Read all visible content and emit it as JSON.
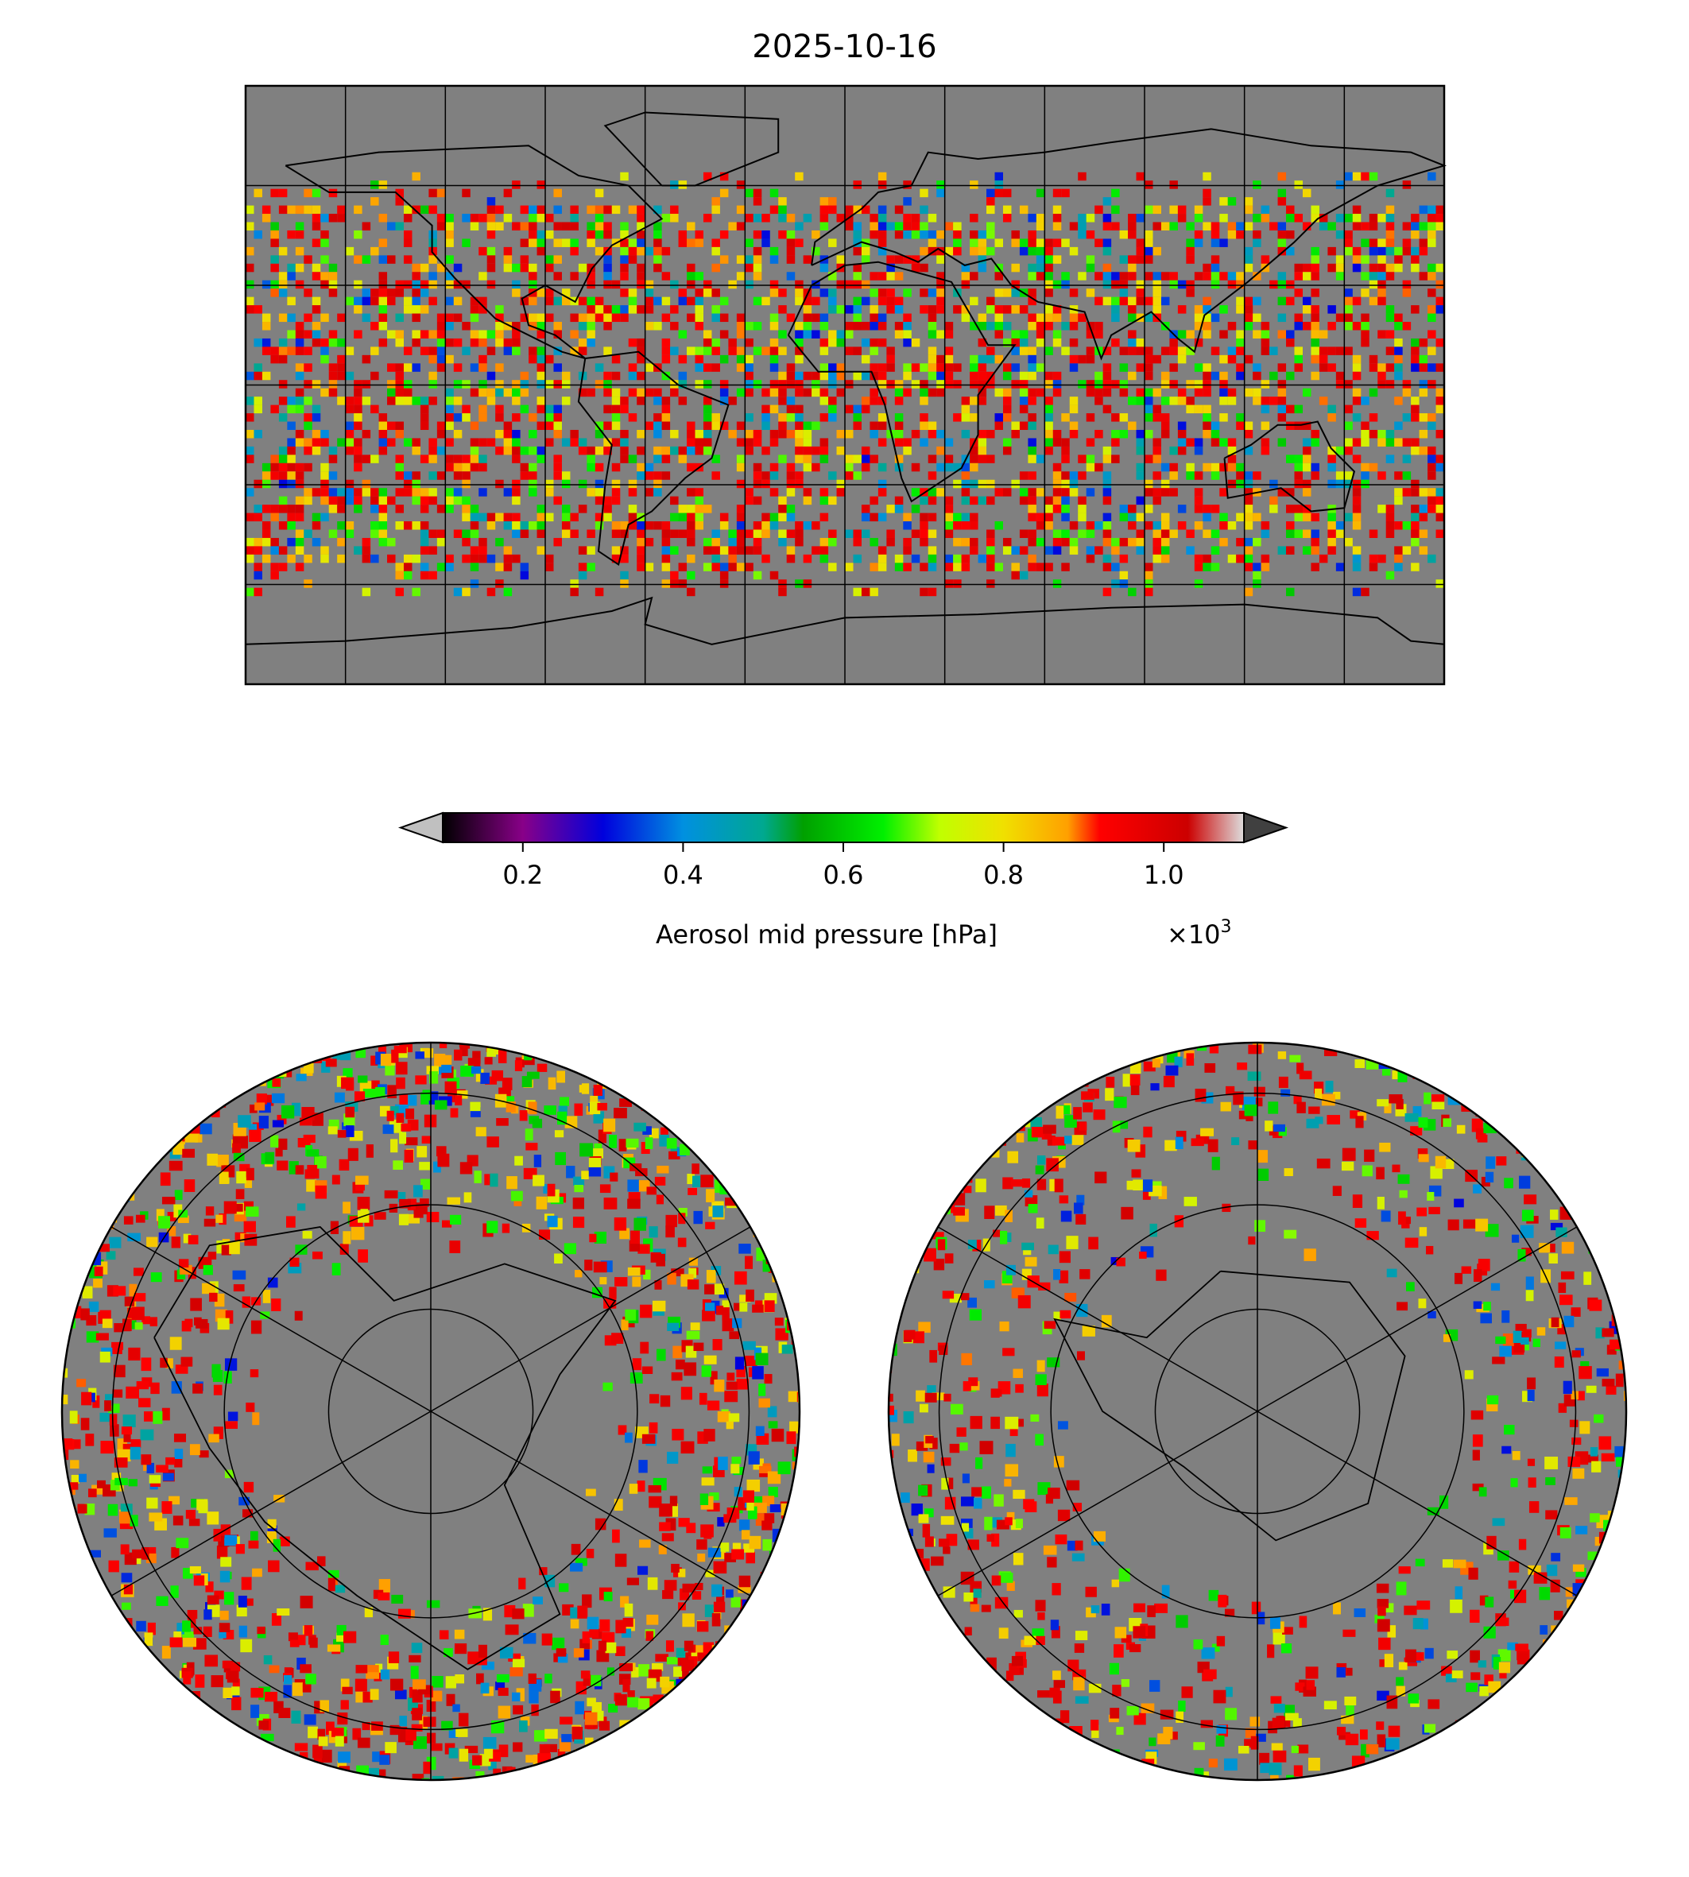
{
  "chart_data": {
    "type": "heatmap",
    "title": "2025-10-16",
    "panels": [
      "global equirectangular map",
      "north polar stereographic",
      "south polar stereographic"
    ],
    "colorbar": {
      "label": "Aerosol mid pressure [hPa]",
      "multiplier": "×10³",
      "multiplier_base": "×10",
      "multiplier_exp": "3",
      "range": [
        0.1,
        1.1
      ],
      "extend": "both",
      "ticks": [
        0.2,
        0.4,
        0.6,
        0.8,
        1.0
      ],
      "tick_labels": [
        "0.2",
        "0.4",
        "0.6",
        "0.8",
        "1.0"
      ],
      "colors": {
        "under": "#c0c0c0",
        "over": "#404040",
        "stops": [
          [
            0.1,
            "#000000"
          ],
          [
            0.2,
            "#880088"
          ],
          [
            0.3,
            "#0000dd"
          ],
          [
            0.4,
            "#0090e0"
          ],
          [
            0.5,
            "#00a890"
          ],
          [
            0.55,
            "#00a000"
          ],
          [
            0.65,
            "#00f000"
          ],
          [
            0.72,
            "#c0ff00"
          ],
          [
            0.8,
            "#f0e000"
          ],
          [
            0.88,
            "#ffa000"
          ],
          [
            0.92,
            "#ff0000"
          ],
          [
            1.03,
            "#cc0000"
          ],
          [
            1.1,
            "#dddddd"
          ]
        ]
      }
    },
    "no_data_color": "#808080",
    "gridlines": {
      "lon_step_deg": 30,
      "lat_step_deg": 30
    }
  }
}
